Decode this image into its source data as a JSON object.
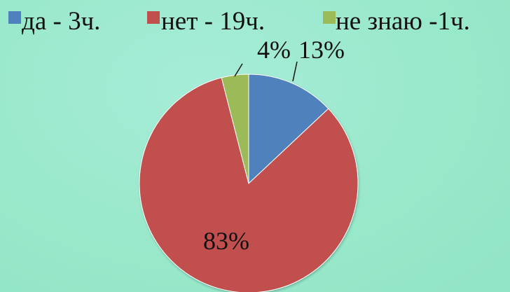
{
  "chart_data": {
    "type": "pie",
    "title": "",
    "legend_position": "top",
    "slices": [
      {
        "name": "да - 3ч.",
        "value": 13,
        "label": "13%",
        "color": "#4f81bd"
      },
      {
        "name": "нет - 19ч.",
        "value": 83,
        "label": "83%",
        "color": "#c0504d"
      },
      {
        "name": "не знаю -1ч.",
        "value": 4,
        "label": "4%",
        "color": "#9bbb59"
      }
    ]
  }
}
